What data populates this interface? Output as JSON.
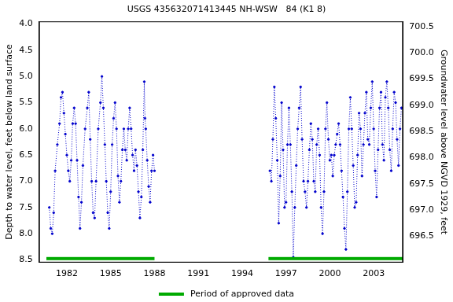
{
  "chart_data": {
    "type": "line",
    "title": "USGS 435632071413445 NH-WSW   84 (K1 8)",
    "y_label": "Depth to water level, feet below land surface",
    "y2_label": "Groundwater level above NGVD 1929, feet",
    "color": "#0000cc",
    "marker": "circle",
    "line_style": "dotted",
    "grid": false,
    "legend": "bottom",
    "x": [
      1980.8,
      1980.9,
      1981.0,
      1981.1,
      1981.2,
      1981.35,
      1981.5,
      1981.6,
      1981.7,
      1981.8,
      1981.9,
      1982.0,
      1982.1,
      1982.2,
      1982.3,
      1982.4,
      1982.5,
      1982.6,
      1982.7,
      1982.8,
      1982.9,
      1983.0,
      1983.1,
      1983.25,
      1983.4,
      1983.5,
      1983.6,
      1983.7,
      1983.8,
      1983.9,
      1984.0,
      1984.15,
      1984.3,
      1984.4,
      1984.5,
      1984.6,
      1984.7,
      1984.8,
      1984.9,
      1985.0,
      1985.1,
      1985.2,
      1985.3,
      1985.4,
      1985.5,
      1985.6,
      1985.7,
      1985.8,
      1985.9,
      1986.0,
      1986.1,
      1986.2,
      1986.3,
      1986.4,
      1986.5,
      1986.6,
      1986.7,
      1986.8,
      1986.9,
      1987.0,
      1987.1,
      1987.2,
      1987.3,
      1987.35,
      1987.4,
      1987.5,
      1987.6,
      1987.7,
      1987.8,
      1987.9,
      1988.0,
      1992.0,
      1995.9,
      1996.0,
      1996.1,
      1996.2,
      1996.3,
      1996.4,
      1996.5,
      1996.6,
      1996.7,
      1996.8,
      1996.9,
      1997.0,
      1997.1,
      1997.2,
      1997.3,
      1997.4,
      1997.5,
      1997.6,
      1997.7,
      1997.8,
      1997.9,
      1998.0,
      1998.1,
      1998.2,
      1998.3,
      1998.4,
      1998.5,
      1998.6,
      1998.7,
      1998.8,
      1998.9,
      1999.0,
      1999.1,
      1999.2,
      1999.3,
      1999.4,
      1999.5,
      1999.6,
      1999.7,
      1999.8,
      1999.9,
      2000.0,
      2000.1,
      2000.2,
      2000.3,
      2000.4,
      2000.5,
      2000.6,
      2000.7,
      2000.8,
      2000.9,
      2001.0,
      2001.1,
      2001.2,
      2001.3,
      2001.4,
      2001.5,
      2001.6,
      2001.7,
      2001.8,
      2001.9,
      2002.0,
      2002.1,
      2002.2,
      2002.3,
      2002.4,
      2002.5,
      2002.6,
      2002.7,
      2002.8,
      2002.9,
      2003.0,
      2003.1,
      2003.2,
      2003.3,
      2003.4,
      2003.5,
      2003.6,
      2003.7,
      2003.8,
      2003.9,
      2004.0,
      2004.1,
      2004.2,
      2004.3,
      2004.4,
      2004.5,
      2004.6,
      2004.7,
      2004.8,
      2004.9
    ],
    "values": [
      7.5,
      7.9,
      8.0,
      7.6,
      6.8,
      6.3,
      5.9,
      5.4,
      5.3,
      5.7,
      6.1,
      6.5,
      6.8,
      7.0,
      6.6,
      5.9,
      5.6,
      5.9,
      6.6,
      7.3,
      7.9,
      7.4,
      6.7,
      6.0,
      5.6,
      5.3,
      6.2,
      7.0,
      7.6,
      7.7,
      7.0,
      6.0,
      5.5,
      5.0,
      5.6,
      6.3,
      7.0,
      7.6,
      7.9,
      7.2,
      6.3,
      5.8,
      5.5,
      6.0,
      6.9,
      7.4,
      7.0,
      6.4,
      6.0,
      6.4,
      6.6,
      6.0,
      5.6,
      6.0,
      6.5,
      6.8,
      6.4,
      6.7,
      7.2,
      7.7,
      7.3,
      6.4,
      5.1,
      5.8,
      6.0,
      6.6,
      7.1,
      7.4,
      6.8,
      6.5,
      6.8,
      null,
      6.8,
      7.0,
      6.2,
      5.2,
      5.8,
      6.6,
      7.8,
      6.9,
      5.5,
      6.4,
      7.5,
      7.4,
      6.3,
      5.6,
      6.3,
      7.2,
      8.45,
      7.5,
      6.7,
      6.0,
      5.6,
      5.2,
      6.2,
      7.0,
      7.2,
      7.5,
      7.0,
      6.4,
      5.9,
      6.2,
      7.0,
      7.2,
      6.3,
      6.0,
      6.5,
      7.5,
      8.0,
      7.2,
      6.0,
      5.5,
      6.2,
      6.6,
      6.5,
      6.9,
      6.5,
      6.3,
      6.1,
      5.9,
      6.3,
      6.8,
      7.3,
      7.9,
      8.3,
      7.2,
      6.0,
      5.4,
      6.0,
      6.7,
      7.5,
      7.4,
      6.5,
      5.7,
      6.0,
      6.9,
      6.3,
      5.7,
      5.3,
      6.2,
      6.3,
      5.6,
      5.1,
      6.0,
      6.8,
      7.3,
      6.4,
      5.6,
      5.3,
      6.3,
      6.6,
      5.4,
      5.1,
      5.6,
      6.4,
      6.8,
      6.0,
      5.3,
      5.5,
      6.2,
      6.7,
      6.0,
      5.6
    ],
    "xlim": [
      1980.1,
      2005.0
    ],
    "xticks": [
      1982,
      1985,
      1988,
      1991,
      1994,
      1997,
      2000,
      2003
    ],
    "ylim": [
      8.55,
      3.95
    ],
    "yticks": [
      {
        "value": 4,
        "label": "4.0"
      },
      4.5,
      {
        "value": 5,
        "label": "5.0"
      },
      5.5,
      {
        "value": 6,
        "label": "6.0"
      },
      6.5,
      {
        "value": 7,
        "label": "7.0"
      },
      7.5,
      {
        "value": 8,
        "label": "8.0"
      },
      8.5
    ],
    "y2lim": [
      696.0,
      700.6
    ],
    "y2ticks": [
      696.5,
      {
        "value": 697,
        "label": "697.0"
      },
      697.5,
      {
        "value": 698,
        "label": "698.0"
      },
      698.5,
      {
        "value": 699,
        "label": "699.0"
      },
      699.5,
      {
        "value": 700,
        "label": "700.0"
      },
      700.5
    ],
    "approved_periods": {
      "name": "Period of approved data",
      "color": "#00aa00",
      "ranges": [
        [
          1980.6,
          1988.0
        ],
        [
          1995.8,
          2005.0
        ]
      ]
    }
  }
}
